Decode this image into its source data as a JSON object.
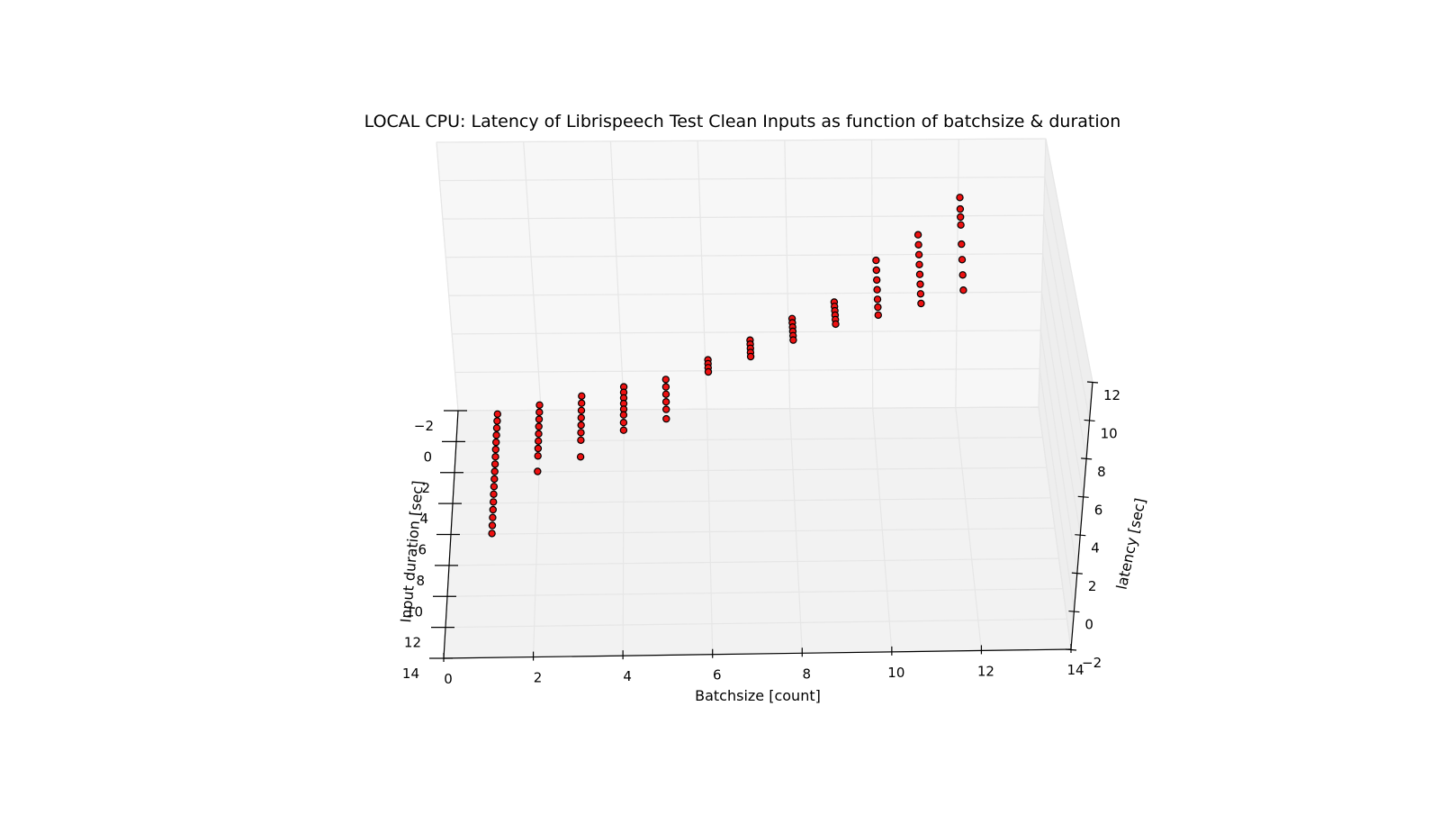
{
  "chart_data": {
    "type": "scatter",
    "projection": "3d",
    "title": "LOCAL CPU: Latency of Librispeech Test Clean Inputs as function of batchsize & duration",
    "xlabel": "Batchsize [count]",
    "ylabel": "Input duration [sec]",
    "zlabel": "latency [sec]",
    "xlim": [
      0,
      14
    ],
    "ylim": [
      -2,
      14
    ],
    "zlim": [
      -2,
      12
    ],
    "xticks": [
      "0",
      "2",
      "4",
      "6",
      "8",
      "10",
      "12",
      "14"
    ],
    "yticks": [
      "−2",
      "0",
      "2",
      "4",
      "6",
      "8",
      "10",
      "12",
      "14"
    ],
    "zticks": [
      "−2",
      "0",
      "2",
      "4",
      "6",
      "8",
      "10",
      "12"
    ],
    "grid": true,
    "colors": {
      "marker_fill": "#ee1111",
      "marker_edge": "#000000",
      "pane": "#f2f2f2",
      "grid": "#e6e6e6"
    },
    "series": [
      {
        "batchsize": 1,
        "duration": [
          1.0,
          1.5,
          2.0,
          2.5,
          3.0,
          3.5,
          4.0,
          4.5,
          5.0,
          5.5,
          6.0,
          6.5,
          7.0,
          7.5,
          8.0,
          8.5,
          9.0
        ],
        "latency": [
          0.5,
          0.6,
          0.7,
          0.8,
          0.9,
          1.0,
          1.1,
          1.2,
          1.3,
          1.4,
          1.5,
          1.6,
          1.7,
          1.8,
          1.9,
          2.0,
          2.1
        ]
      },
      {
        "batchsize": 2,
        "duration": [
          1.0,
          1.5,
          2.0,
          2.5,
          3.0,
          3.5,
          4.0,
          4.5,
          5.2
        ],
        "latency": [
          1.0,
          1.1,
          1.2,
          1.3,
          1.4,
          1.5,
          1.6,
          1.7,
          1.5
        ]
      },
      {
        "batchsize": 3,
        "duration": [
          1.0,
          1.5,
          2.0,
          2.5,
          3.0,
          3.5,
          4.0,
          5.0
        ],
        "latency": [
          1.5,
          1.6,
          1.7,
          1.8,
          1.9,
          2.0,
          2.1,
          2.2
        ]
      },
      {
        "batchsize": 4,
        "duration": [
          1.0,
          1.4,
          1.8,
          2.2,
          2.6,
          3.0,
          3.5,
          4.0
        ],
        "latency": [
          2.0,
          2.1,
          2.2,
          2.3,
          2.4,
          2.5,
          2.6,
          2.7
        ]
      },
      {
        "batchsize": 5,
        "duration": [
          1.0,
          1.5,
          2.0,
          2.5,
          3.0,
          3.6
        ],
        "latency": [
          2.4,
          2.5,
          2.6,
          2.7,
          2.8,
          2.9
        ]
      },
      {
        "batchsize": 6,
        "duration": [
          1.0,
          1.3,
          1.6,
          2.0
        ],
        "latency": [
          3.5,
          3.6,
          3.7,
          3.9
        ]
      },
      {
        "batchsize": 7,
        "duration": [
          1.0,
          1.3,
          1.6,
          1.9,
          2.2
        ],
        "latency": [
          4.6,
          4.7,
          4.8,
          4.9,
          5.0
        ]
      },
      {
        "batchsize": 8,
        "duration": [
          1.0,
          1.3,
          1.6,
          1.9,
          2.2,
          2.5
        ],
        "latency": [
          5.8,
          5.9,
          6.0,
          6.1,
          6.2,
          6.3
        ]
      },
      {
        "batchsize": 9,
        "duration": [
          1.0,
          1.3,
          1.6,
          1.9,
          2.2,
          2.5
        ],
        "latency": [
          6.7,
          6.8,
          6.9,
          7.0,
          7.1,
          7.2
        ]
      },
      {
        "batchsize": 10,
        "duration": [
          0.8,
          1.1,
          1.4,
          1.7,
          2.0,
          2.3,
          2.6
        ],
        "latency": [
          8.8,
          8.6,
          8.4,
          8.2,
          8.0,
          7.9,
          7.8
        ]
      },
      {
        "batchsize": 11,
        "duration": [
          0.8,
          1.1,
          1.4,
          1.7,
          2.0,
          2.3,
          2.6,
          2.9
        ],
        "latency": [
          10.2,
          10.0,
          9.8,
          9.6,
          9.4,
          9.2,
          9.0,
          8.8
        ]
      },
      {
        "batchsize": 12,
        "duration": [
          0.6,
          0.8,
          1.0,
          1.2,
          1.6,
          2.0,
          2.4,
          2.8
        ],
        "latency": [
          12.0,
          11.6,
          11.4,
          11.2,
          10.6,
          10.2,
          9.8,
          9.4
        ]
      }
    ]
  }
}
